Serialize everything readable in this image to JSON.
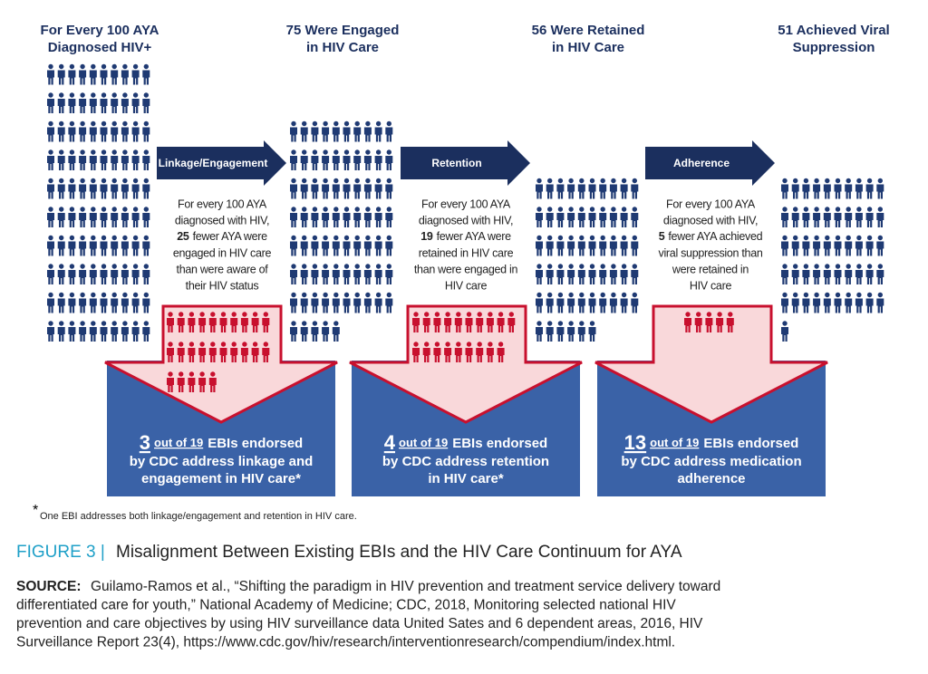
{
  "stages": [
    {
      "title": [
        "For Every 100 AYA",
        "Diagnosed HIV+"
      ],
      "count": 100
    },
    {
      "title": [
        "75 Were Engaged",
        "in HIV Care"
      ],
      "count": 75
    },
    {
      "title": [
        "56 Were Retained",
        "in HIV Care"
      ],
      "count": 56
    },
    {
      "title": [
        "51 Achieved Viral",
        "Suppression"
      ],
      "count": 51
    }
  ],
  "steps": [
    {
      "label": "Linkage/Engagement",
      "before": [
        "For every 100 AYA",
        "diagnosed with HIV,"
      ],
      "fewer": 25,
      "fewer_text": "fewer AYA were",
      "after": [
        "engaged in HIV care",
        "than were aware of",
        "their HIV status"
      ],
      "ebi_count": 3,
      "ebi_out_of": "out of 19",
      "ebi_text": [
        "EBIs endorsed",
        "by CDC address linkage and",
        "engagement in HIV care*"
      ]
    },
    {
      "label": "Retention",
      "before": [
        "For every 100 AYA",
        "diagnosed with HIV,"
      ],
      "fewer": 19,
      "fewer_text": "fewer AYA were",
      "after": [
        "retained in HIV care",
        "than were engaged in",
        "HIV care"
      ],
      "ebi_count": 4,
      "ebi_out_of": "out of 19",
      "ebi_text": [
        "EBIs endorsed",
        "by CDC address retention",
        "in HIV care*"
      ]
    },
    {
      "label": "Adherence",
      "before": [
        "For every 100 AYA",
        "diagnosed with HIV,"
      ],
      "fewer": 5,
      "fewer_text": "fewer AYA achieved",
      "after": [
        "viral suppression than",
        "were retained in",
        "HIV care"
      ],
      "ebi_count": 13,
      "ebi_out_of": "out of 19",
      "ebi_text": [
        "EBIs endorsed",
        "by CDC address medication",
        "adherence"
      ]
    }
  ],
  "footnote": {
    "mark": "*",
    "text": "One EBI addresses both linkage/engagement and retention in HIV care."
  },
  "caption": {
    "label": "FIGURE 3 |",
    "title": "Misalignment Between Existing EBIs and the HIV Care Continuum for AYA",
    "source_label": "SOURCE:",
    "source_lines": [
      "Guilamo-Ramos et al., “Shifting the paradigm in HIV prevention and treatment service delivery toward",
      "differentiated care for youth,” National Academy of Medicine; CDC, 2018, Monitoring selected national HIV",
      "prevention and care objectives by using HIV surveillance data United Sates and 6 dependent areas, 2016, HIV",
      "Surveillance Report 23(4), https://www.cdc.gov/hiv/research/interventionresearch/compendium/index.html."
    ]
  }
}
